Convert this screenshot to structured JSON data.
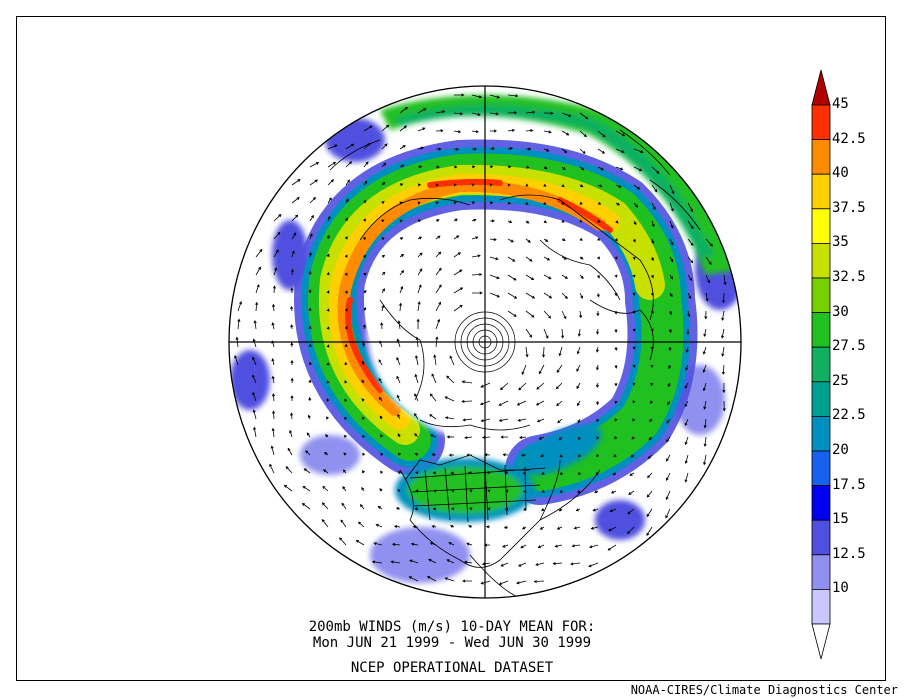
{
  "caption": {
    "line1": "200mb WINDS (m/s)   10-DAY MEAN FOR:",
    "line2": "Mon JUN 21 1999 - Wed JUN 30 1999",
    "line3": "NCEP OPERATIONAL DATASET"
  },
  "footer": "NOAA-CIRES/Climate Diagnostics Center",
  "colorbar": {
    "labels": [
      "45",
      "42.5",
      "40",
      "37.5",
      "35",
      "32.5",
      "30",
      "27.5",
      "25",
      "22.5",
      "20",
      "17.5",
      "15",
      "12.5",
      "10"
    ],
    "colors": [
      "#b00000",
      "#ff3000",
      "#ff8c00",
      "#ffd000",
      "#ffff00",
      "#c8e000",
      "#78d000",
      "#20c020",
      "#10b060",
      "#00a090",
      "#0090c0",
      "#1860f0",
      "#0000f0",
      "#5050e0",
      "#9090f0",
      "#c8c8ff",
      "#ffffff"
    ]
  },
  "map": {
    "projection": "north-polar-stereographic",
    "variable": "200mb wind speed (m/s) with wind vectors"
  }
}
